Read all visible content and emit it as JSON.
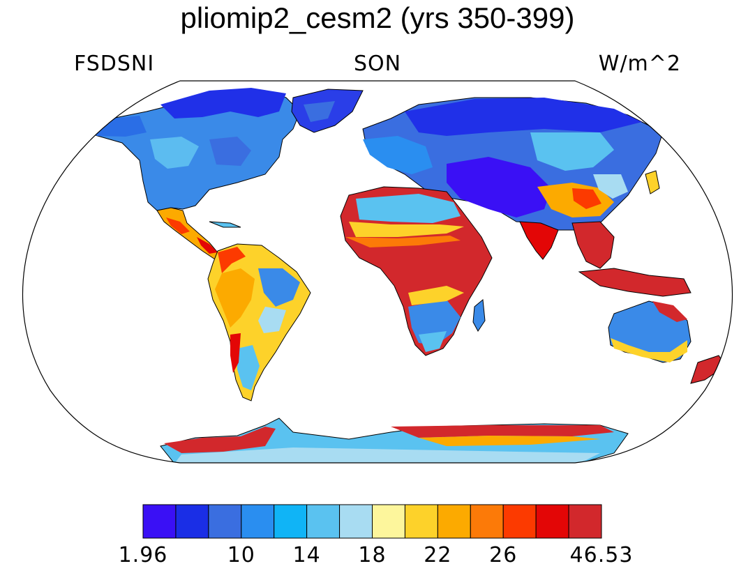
{
  "title": "pliomip2_cesm2 (yrs 350-399)",
  "variable": "FSDSNI",
  "season": "SON",
  "units": "W/m^2",
  "colorbar": {
    "colors": [
      "#3a10f5",
      "#1a2ee6",
      "#3a6ee0",
      "#2a8ef0",
      "#10b4f6",
      "#5ac2f0",
      "#a8dcf2",
      "#fdf69c",
      "#fdd22a",
      "#fcaa00",
      "#fc7a08",
      "#fc3a00",
      "#e30606",
      "#d2282c"
    ],
    "tick_labels": [
      "1.96",
      "10",
      "14",
      "18",
      "22",
      "26",
      "46.53"
    ],
    "tick_boundaries": [
      0,
      3,
      5,
      7,
      9,
      11,
      14
    ]
  },
  "palette": {
    "ocean": "#ffffff",
    "coast": "#000000"
  }
}
